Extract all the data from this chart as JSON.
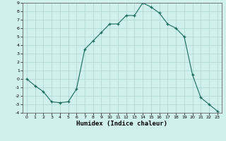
{
  "x": [
    0,
    1,
    2,
    3,
    4,
    5,
    6,
    7,
    8,
    9,
    10,
    11,
    12,
    13,
    14,
    15,
    16,
    17,
    18,
    19,
    20,
    21,
    22,
    23
  ],
  "y": [
    0,
    -0.8,
    -1.5,
    -2.7,
    -2.8,
    -2.7,
    -1.2,
    3.5,
    4.5,
    5.5,
    6.5,
    6.5,
    7.5,
    7.5,
    9.0,
    8.5,
    7.8,
    6.5,
    6.0,
    5.0,
    0.5,
    -2.2,
    -3.0,
    -3.8
  ],
  "xlabel": "Humidex (Indice chaleur)",
  "bg_color": "#cff0eb",
  "grid_color": "#aad4cc",
  "line_color": "#1a6b5a",
  "marker_color": "#1a6b5a",
  "ylim": [
    -4,
    9
  ],
  "xlim": [
    -0.5,
    23.5
  ],
  "yticks": [
    -4,
    -3,
    -2,
    -1,
    0,
    1,
    2,
    3,
    4,
    5,
    6,
    7,
    8,
    9
  ],
  "xticks": [
    0,
    1,
    2,
    3,
    4,
    5,
    6,
    7,
    8,
    9,
    10,
    11,
    12,
    13,
    14,
    15,
    16,
    17,
    18,
    19,
    20,
    21,
    22,
    23
  ]
}
